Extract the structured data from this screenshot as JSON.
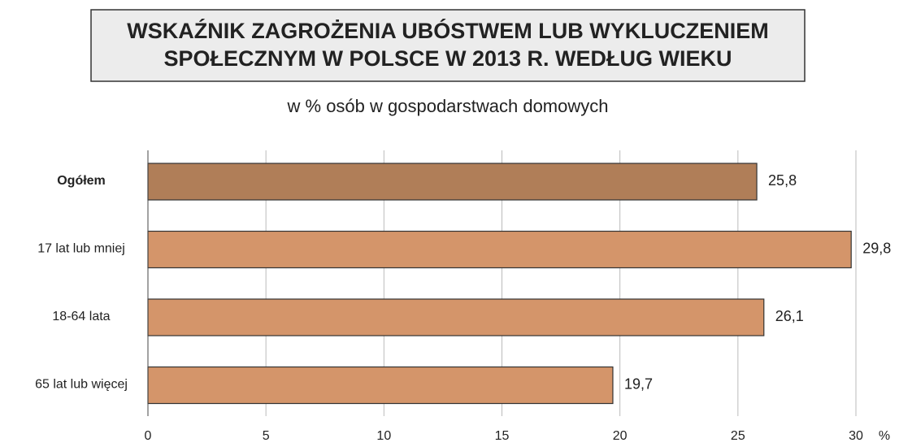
{
  "chart_data": {
    "type": "barh",
    "title": [
      "WSKAŹNIK ZAGROŻENIA UBÓSTWEM LUB WYKLUCZENIEM",
      "SPOŁECZNYM W POLSCE W 2013 R. WEDŁUG WIEKU"
    ],
    "subtitle": "w % osób w gospodarstwach domowych",
    "xlabel": "%",
    "categories": [
      "Ogółem",
      "17 lat lub mniej",
      "18-64 lata",
      "65 lat lub więcej"
    ],
    "values": [
      25.8,
      29.8,
      26.1,
      19.7
    ],
    "value_labels": [
      "25,8",
      "29,8",
      "26,1",
      "19,7"
    ],
    "colors": [
      "#b07e58",
      "#d4956a",
      "#d4956a",
      "#d4956a"
    ],
    "xlim": [
      0,
      30
    ],
    "xticks": [
      0,
      5,
      10,
      15,
      20,
      25,
      30
    ],
    "grid": true
  }
}
